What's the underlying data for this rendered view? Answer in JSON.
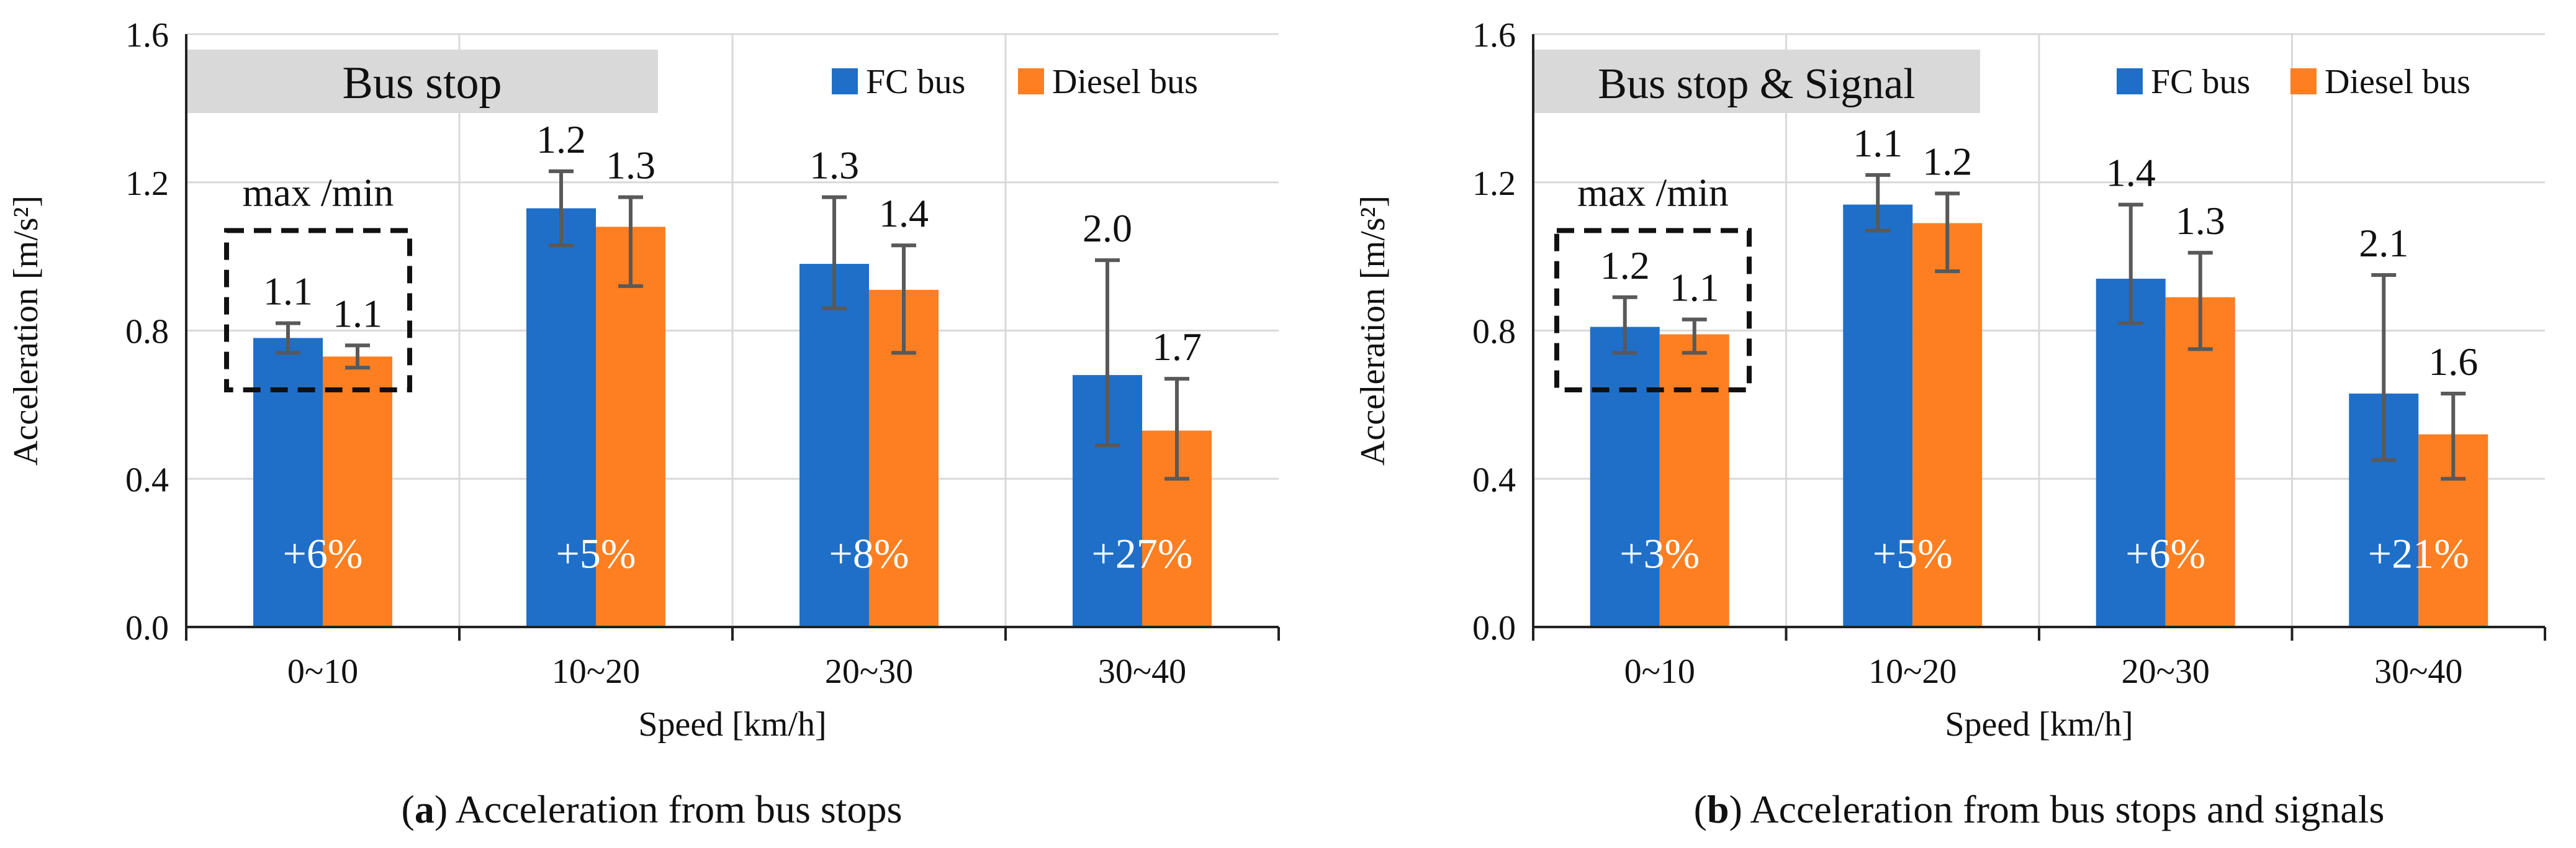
{
  "colors": {
    "fc": "#1f6fc8",
    "diesel": "#fd7f21",
    "tag_bg": "#d9d9d9"
  },
  "chart_data": [
    {
      "type": "bar",
      "panel_label": "a",
      "caption": "Acceleration from bus stops",
      "tag": "Bus stop",
      "annotation": "max /min",
      "xlabel": "Speed [km/h]",
      "ylabel": "Acceleration [m/s²]",
      "ylim": [
        0,
        1.6
      ],
      "yticks": [
        "0.0",
        "0.4",
        "0.8",
        "1.2",
        "1.6"
      ],
      "categories": [
        "0~10",
        "10~20",
        "20~30",
        "30~40"
      ],
      "legend_position": "top-right",
      "series": [
        {
          "name": "FC bus",
          "values": [
            0.78,
            1.13,
            0.98,
            0.68
          ],
          "err_low": [
            0.74,
            1.03,
            0.86,
            0.49
          ],
          "err_high": [
            0.82,
            1.23,
            1.16,
            0.99
          ],
          "ratio_labels": [
            "1.1",
            "1.2",
            "1.3",
            "2.0"
          ]
        },
        {
          "name": "Diesel bus",
          "values": [
            0.73,
            1.08,
            0.91,
            0.53
          ],
          "err_low": [
            0.7,
            0.92,
            0.74,
            0.4
          ],
          "err_high": [
            0.76,
            1.16,
            1.03,
            0.67
          ],
          "ratio_labels": [
            "1.1",
            "1.3",
            "1.4",
            "1.7"
          ]
        }
      ],
      "diff_labels": [
        "+6%",
        "+5%",
        "+8%",
        "+27%"
      ]
    },
    {
      "type": "bar",
      "panel_label": "b",
      "caption": "Acceleration from bus stops and signals",
      "tag": "Bus stop & Signal",
      "annotation": "max /min",
      "xlabel": "Speed [km/h]",
      "ylabel": "Acceleration [m/s²]",
      "ylim": [
        0,
        1.6
      ],
      "yticks": [
        "0.0",
        "0.4",
        "0.8",
        "1.2",
        "1.6"
      ],
      "categories": [
        "0~10",
        "10~20",
        "20~30",
        "30~40"
      ],
      "legend_position": "top-right",
      "series": [
        {
          "name": "FC bus",
          "values": [
            0.81,
            1.14,
            0.94,
            0.63
          ],
          "err_low": [
            0.74,
            1.07,
            0.82,
            0.45
          ],
          "err_high": [
            0.89,
            1.22,
            1.14,
            0.95
          ],
          "ratio_labels": [
            "1.2",
            "1.1",
            "1.4",
            "2.1"
          ]
        },
        {
          "name": "Diesel bus",
          "values": [
            0.79,
            1.09,
            0.89,
            0.52
          ],
          "err_low": [
            0.74,
            0.96,
            0.75,
            0.4
          ],
          "err_high": [
            0.83,
            1.17,
            1.01,
            0.63
          ],
          "ratio_labels": [
            "1.1",
            "1.2",
            "1.3",
            "1.6"
          ]
        }
      ],
      "diff_labels": [
        "+3%",
        "+5%",
        "+6%",
        "+21%"
      ]
    }
  ]
}
